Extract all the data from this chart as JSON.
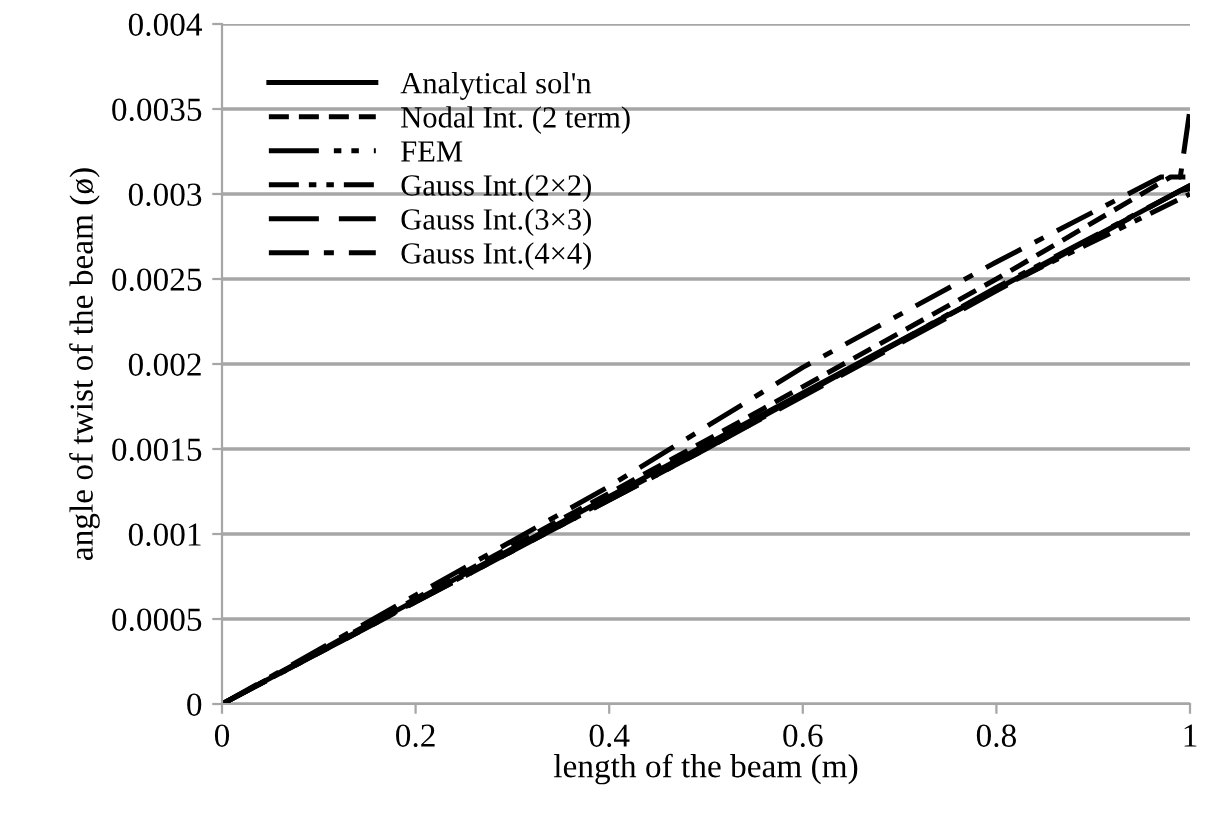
{
  "chart_data": {
    "type": "line",
    "xlabel": "length of the beam (m)",
    "ylabel": "angle of twist of the beam (ø)",
    "xlim": [
      0,
      1
    ],
    "xticks": [
      0,
      0.2,
      0.4,
      0.6,
      0.8,
      1
    ],
    "ylim": [
      0,
      0.004
    ],
    "yticks": [
      0,
      0.0005,
      0.001,
      0.0015,
      0.002,
      0.0025,
      0.003,
      0.0035,
      0.004
    ],
    "grid": "y",
    "legend": "top left",
    "series": [
      {
        "name": "Analytical sol'n",
        "color": "#000000",
        "line_style": "solid",
        "x": [
          0,
          1
        ],
        "values": [
          0,
          0.00305
        ]
      },
      {
        "name": "Nodal Int. (2 term)",
        "color": "#000000",
        "line_style": "dashed",
        "x": [
          0,
          0.5,
          0.8,
          0.98,
          1
        ],
        "values": [
          0,
          0.00155,
          0.0025,
          0.0031,
          0.0031
        ]
      },
      {
        "name": "FEM",
        "color": "#000000",
        "line_style": "longdashdotdot",
        "x": [
          0,
          0.5,
          0.8,
          1
        ],
        "values": [
          0,
          0.0015,
          0.00245,
          0.00305
        ]
      },
      {
        "name": "Gauss Int.(2×2)",
        "color": "#000000",
        "line_style": "dashdotdot",
        "x": [
          0,
          0.5,
          0.8,
          1
        ],
        "values": [
          0,
          0.00151,
          0.00244,
          0.003
        ]
      },
      {
        "name": "Gauss Int.(3×3)",
        "color": "#000000",
        "line_style": "longdash",
        "x": [
          0,
          0.5,
          0.8,
          0.99,
          1
        ],
        "values": [
          0,
          0.0015,
          0.00243,
          0.00302,
          0.00303
        ]
      },
      {
        "name": "Gauss Int.(4×4)",
        "color": "#000000",
        "line_style": "dashdot",
        "x": [
          0,
          0.4,
          0.6,
          0.8,
          0.97,
          0.99,
          1
        ],
        "values": [
          0,
          0.00128,
          0.00198,
          0.0026,
          0.0031,
          0.0031,
          0.0035
        ]
      }
    ]
  }
}
